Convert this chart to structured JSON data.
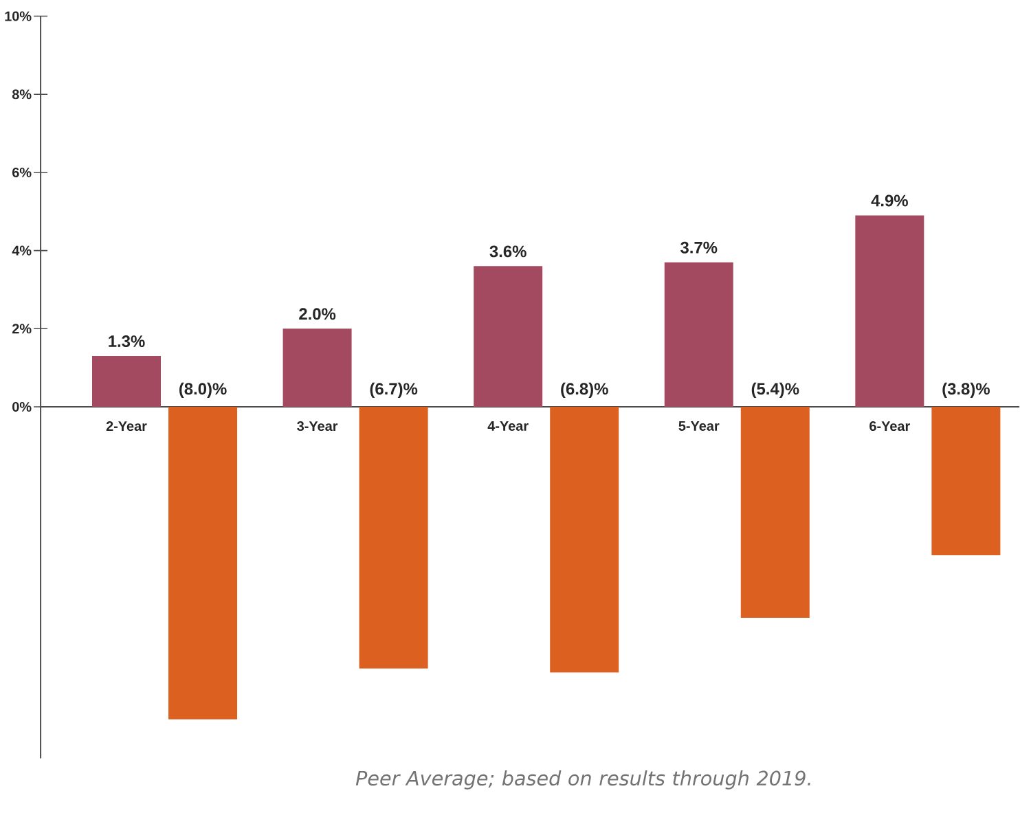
{
  "chart_data": {
    "type": "bar",
    "categories": [
      "2-Year",
      "3-Year",
      "4-Year",
      "5-Year",
      "6-Year"
    ],
    "series": [
      {
        "color": "#a34a61",
        "values": [
          1.3,
          2.0,
          3.6,
          3.7,
          4.9
        ],
        "value_labels": [
          "1.3%",
          "2.0%",
          "3.6%",
          "3.7%",
          "4.9%"
        ]
      },
      {
        "color": "#dc6020",
        "values": [
          -8.0,
          -6.7,
          -6.8,
          -5.4,
          -3.8
        ],
        "value_labels": [
          "(8.0)%",
          "(6.7)%",
          "(6.8)%",
          "(5.4)%",
          "(3.8)%"
        ]
      }
    ],
    "ylim": [
      -9,
      10
    ],
    "yticks": [
      {
        "value": 0,
        "label": "0%"
      },
      {
        "value": 2,
        "label": "2%"
      },
      {
        "value": 4,
        "label": "4%"
      },
      {
        "value": 6,
        "label": "6%"
      },
      {
        "value": 8,
        "label": "8%"
      },
      {
        "value": 10,
        "label": "10%"
      }
    ],
    "grid": false,
    "annotations": [
      "Peer Average; based on results through 2019."
    ]
  }
}
